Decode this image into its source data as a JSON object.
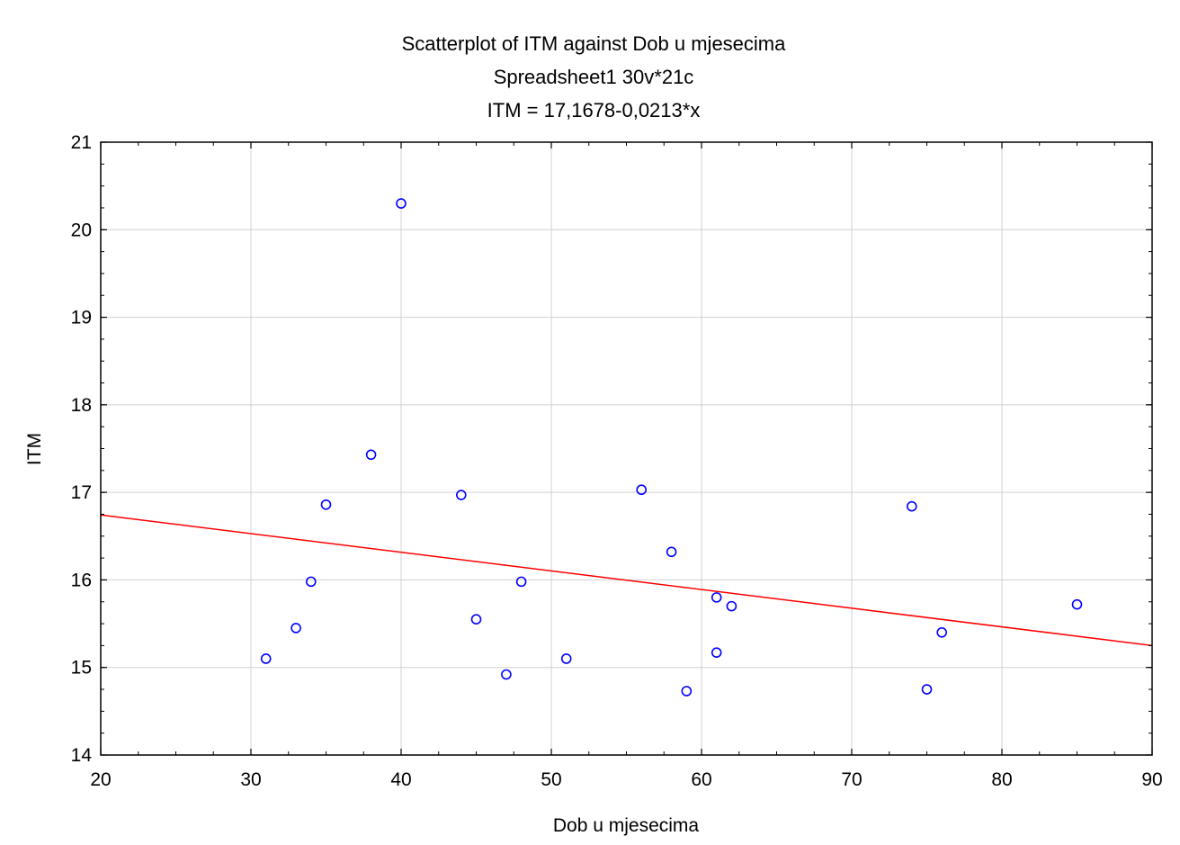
{
  "chart_data": {
    "type": "scatter",
    "title": "Scatterplot of ITM against Dob u mjesecima",
    "subtitle": "Spreadsheet1 30v*21c",
    "equation": "ITM = 17,1678-0,0213*x",
    "xlabel": "Dob u mjesecima",
    "ylabel": "ITM",
    "xlim": [
      20,
      90
    ],
    "ylim": [
      14,
      21
    ],
    "xticks": [
      20,
      30,
      40,
      50,
      60,
      70,
      80,
      90
    ],
    "yticks": [
      14,
      15,
      16,
      17,
      18,
      19,
      20,
      21
    ],
    "grid": true,
    "regression": {
      "intercept": 17.1678,
      "slope": -0.0213
    },
    "series": [
      {
        "points": [
          {
            "x": 31,
            "y": 15.1
          },
          {
            "x": 33,
            "y": 15.45
          },
          {
            "x": 34,
            "y": 15.98
          },
          {
            "x": 35,
            "y": 16.86
          },
          {
            "x": 38,
            "y": 17.43
          },
          {
            "x": 40,
            "y": 20.3
          },
          {
            "x": 44,
            "y": 16.97
          },
          {
            "x": 45,
            "y": 15.55
          },
          {
            "x": 47,
            "y": 14.92
          },
          {
            "x": 48,
            "y": 15.98
          },
          {
            "x": 51,
            "y": 15.1
          },
          {
            "x": 56,
            "y": 17.03
          },
          {
            "x": 58,
            "y": 16.32
          },
          {
            "x": 59,
            "y": 14.73
          },
          {
            "x": 61,
            "y": 15.8
          },
          {
            "x": 61,
            "y": 15.17
          },
          {
            "x": 62,
            "y": 15.7
          },
          {
            "x": 74,
            "y": 16.84
          },
          {
            "x": 75,
            "y": 14.75
          },
          {
            "x": 76,
            "y": 15.4
          },
          {
            "x": 85,
            "y": 15.72
          }
        ]
      }
    ]
  },
  "colors": {
    "points": "#0000ff",
    "fit_line": "#ff0000",
    "grid": "#d0d0d0",
    "axes": "#000000"
  }
}
